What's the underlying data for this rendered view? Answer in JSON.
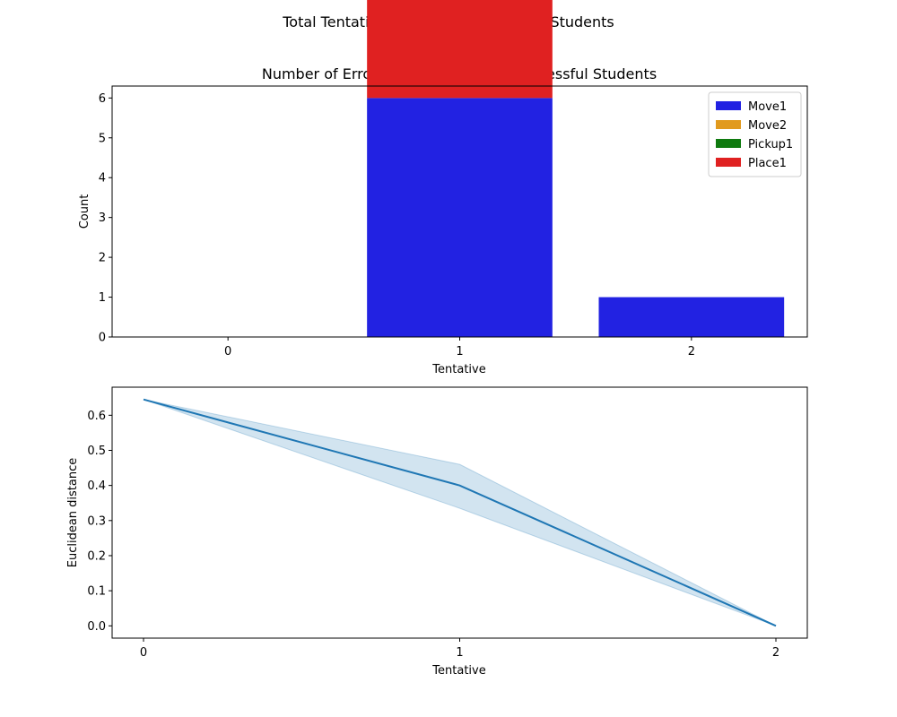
{
  "figure": {
    "suptitle": "Total Tentatives=2, N=44 Successful Students"
  },
  "chart_data": [
    {
      "type": "bar",
      "title": "Number of Errors per Tentative for Successful Students",
      "xlabel": "Tentative",
      "ylabel": "Count",
      "categories": [
        "0",
        "1",
        "2"
      ],
      "ylim": [
        0,
        6.3
      ],
      "yticks": [
        "0",
        "1",
        "2",
        "3",
        "4",
        "5",
        "6"
      ],
      "legend_position": "top-right",
      "series": [
        {
          "name": "Move1",
          "color": "#2222e2",
          "values": [
            0,
            6,
            1
          ]
        },
        {
          "name": "Move2",
          "color": "#e19a1e",
          "values": [
            0,
            0,
            0
          ]
        },
        {
          "name": "Pickup1",
          "color": "#0f7a0f",
          "values": [
            0,
            0,
            0
          ]
        },
        {
          "name": "Place1",
          "color": "#e02121",
          "values": [
            0,
            3,
            0
          ]
        }
      ]
    },
    {
      "type": "line",
      "title": "",
      "xlabel": "Tentative",
      "ylabel": "Euclidean distance",
      "x": [
        0,
        1,
        2
      ],
      "xticks": [
        "0",
        "1",
        "2"
      ],
      "ylim": [
        -0.035,
        0.68
      ],
      "yticks": [
        "0.0",
        "0.1",
        "0.2",
        "0.3",
        "0.4",
        "0.5",
        "0.6"
      ],
      "series": [
        {
          "name": "",
          "color": "#1f77b4",
          "values": [
            0.645,
            0.4,
            0.0
          ],
          "ci_lower": [
            0.645,
            0.335,
            0.0
          ],
          "ci_upper": [
            0.645,
            0.46,
            0.0
          ]
        }
      ]
    }
  ]
}
